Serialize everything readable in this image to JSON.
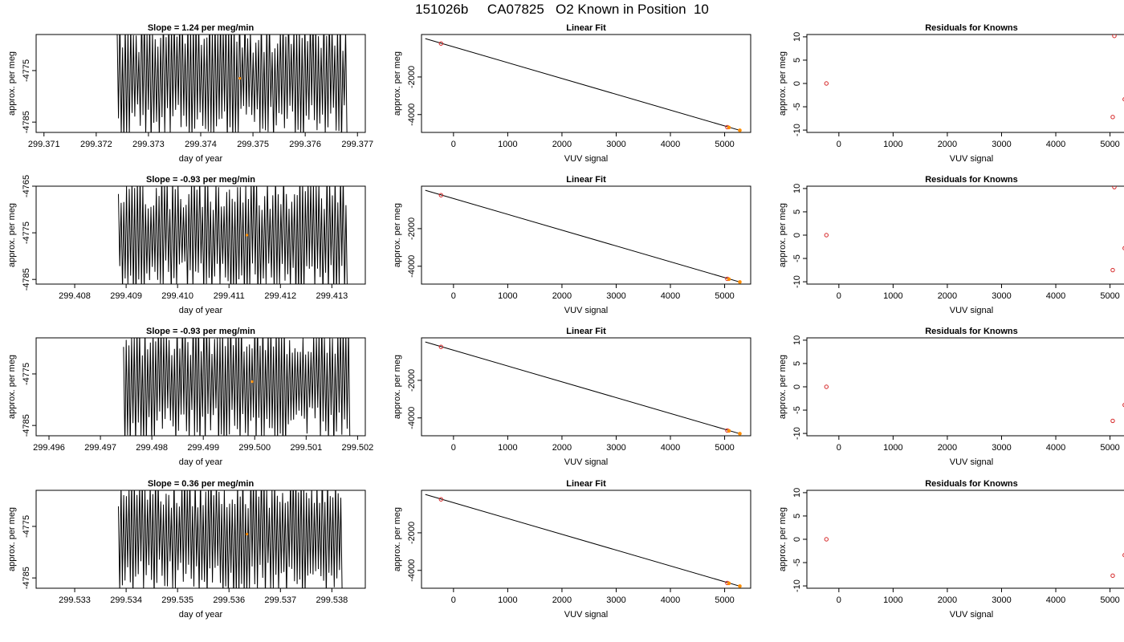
{
  "page": {
    "title": "151026b     CA07825   O2 Known in Position  10"
  },
  "colors": {
    "trace": "#000000",
    "marker_orange": "#ff8c00",
    "marker_red": "#d62728",
    "axis": "#000000"
  },
  "chart_data": [
    {
      "type": "line",
      "row": 0,
      "col": 0,
      "title": "Slope =  1.24  per meg/min",
      "xlabel": "day of year",
      "ylabel": "approx. per meg",
      "xlim": [
        299.37085,
        299.37715
      ],
      "ylim": [
        -4787,
        -4768
      ],
      "xticks": [
        299.371,
        299.372,
        299.373,
        299.374,
        299.375,
        299.376,
        299.377
      ],
      "xtick_labels": [
        "299.371",
        "299.372",
        "299.373",
        "299.374",
        "299.375",
        "299.376",
        "299.377"
      ],
      "yticks": [
        -4775,
        -4785
      ],
      "ytick_labels": [
        "-4775",
        "-4785"
      ],
      "trace": {
        "x_start": 299.3724,
        "x_end": 299.3768,
        "samples": 170,
        "center": -4776.5,
        "amplitude": 11,
        "seed": 1
      },
      "marker": {
        "x": 299.37475,
        "y": -4776.5
      }
    },
    {
      "type": "scatter",
      "row": 0,
      "col": 1,
      "title": "Linear Fit",
      "xlabel": "VUV signal",
      "ylabel": "approx. per meg",
      "xlim": [
        -590,
        5480
      ],
      "ylim": [
        -4950,
        260
      ],
      "xticks": [
        0,
        1000,
        2000,
        3000,
        4000,
        5000
      ],
      "xtick_labels": [
        "0",
        "1000",
        "2000",
        "3000",
        "4000",
        "5000"
      ],
      "yticks": [
        -2000,
        -4000
      ],
      "ytick_labels": [
        "-2000",
        "-4000"
      ],
      "fit_line": {
        "x": [
          -520,
          5280
        ],
        "y": [
          40,
          -4840
        ]
      },
      "points": [
        {
          "x": -230,
          "y": -220,
          "style": "red"
        },
        {
          "x": 5050,
          "y": -4670,
          "style": "red"
        },
        {
          "x": 5080,
          "y": -4690,
          "style": "orange"
        },
        {
          "x": 5280,
          "y": -4840,
          "style": "orange"
        }
      ]
    },
    {
      "type": "scatter",
      "row": 0,
      "col": 2,
      "title": "Residuals for Knowns",
      "xlabel": "VUV signal",
      "ylabel": "approx. per meg",
      "xlim": [
        -590,
        5480
      ],
      "ylim": [
        -10.5,
        10.5
      ],
      "xticks": [
        0,
        1000,
        2000,
        3000,
        4000,
        5000
      ],
      "xtick_labels": [
        "0",
        "1000",
        "2000",
        "3000",
        "4000",
        "5000"
      ],
      "yticks": [
        10,
        5,
        0,
        -5,
        -10
      ],
      "ytick_labels": [
        "10",
        "5",
        "0",
        "-5",
        "-10"
      ],
      "points": [
        {
          "x": -230,
          "y": 0
        },
        {
          "x": 5080,
          "y": 10.2
        },
        {
          "x": 5050,
          "y": -7.2
        },
        {
          "x": 5270,
          "y": -3.4
        }
      ]
    },
    {
      "type": "line",
      "row": 1,
      "col": 0,
      "title": "Slope =  -0.93  per meg/min",
      "xlabel": "day of year",
      "ylabel": "approx. per meg",
      "xlim": [
        299.40725,
        299.41365
      ],
      "ylim": [
        -4786,
        -4765
      ],
      "xticks": [
        299.408,
        299.409,
        299.41,
        299.411,
        299.412,
        299.413
      ],
      "xtick_labels": [
        "299.408",
        "299.409",
        "299.410",
        "299.411",
        "299.412",
        "299.413"
      ],
      "yticks": [
        -4765,
        -4775,
        -4785
      ],
      "ytick_labels": [
        "-4765",
        "-4775",
        "-4785"
      ],
      "trace": {
        "x_start": 299.40885,
        "x_end": 299.4133,
        "samples": 170,
        "center": -4775.5,
        "amplitude": 12,
        "seed": 2
      },
      "marker": {
        "x": 299.41135,
        "y": -4775.5
      }
    },
    {
      "type": "scatter",
      "row": 1,
      "col": 1,
      "title": "Linear Fit",
      "xlabel": "VUV signal",
      "ylabel": "approx. per meg",
      "xlim": [
        -590,
        5480
      ],
      "ylim": [
        -4950,
        260
      ],
      "xticks": [
        0,
        1000,
        2000,
        3000,
        4000,
        5000
      ],
      "xtick_labels": [
        "0",
        "1000",
        "2000",
        "3000",
        "4000",
        "5000"
      ],
      "yticks": [
        -2000,
        -4000
      ],
      "ytick_labels": [
        "-2000",
        "-4000"
      ],
      "fit_line": {
        "x": [
          -520,
          5280
        ],
        "y": [
          40,
          -4840
        ]
      },
      "points": [
        {
          "x": -230,
          "y": -220,
          "style": "red"
        },
        {
          "x": 5050,
          "y": -4670,
          "style": "red"
        },
        {
          "x": 5080,
          "y": -4690,
          "style": "orange"
        },
        {
          "x": 5280,
          "y": -4840,
          "style": "orange"
        }
      ]
    },
    {
      "type": "scatter",
      "row": 1,
      "col": 2,
      "title": "Residuals for Knowns",
      "xlabel": "VUV signal",
      "ylabel": "approx. per meg",
      "xlim": [
        -590,
        5480
      ],
      "ylim": [
        -10.5,
        10.5
      ],
      "xticks": [
        0,
        1000,
        2000,
        3000,
        4000,
        5000
      ],
      "xtick_labels": [
        "0",
        "1000",
        "2000",
        "3000",
        "4000",
        "5000"
      ],
      "yticks": [
        10,
        5,
        0,
        -5,
        -10
      ],
      "ytick_labels": [
        "10",
        "5",
        "0",
        "-5",
        "-10"
      ],
      "points": [
        {
          "x": -230,
          "y": 0
        },
        {
          "x": 5080,
          "y": 10.3
        },
        {
          "x": 5050,
          "y": -7.5
        },
        {
          "x": 5270,
          "y": -2.8
        }
      ]
    },
    {
      "type": "line",
      "row": 2,
      "col": 0,
      "title": "Slope =  -0.93  per meg/min",
      "xlabel": "day of year",
      "ylabel": "approx. per meg",
      "xlim": [
        299.49575,
        299.50215
      ],
      "ylim": [
        -4787,
        -4768
      ],
      "xticks": [
        299.496,
        299.497,
        299.498,
        299.499,
        299.5,
        299.501,
        299.502
      ],
      "xtick_labels": [
        "299.496",
        "299.497",
        "299.498",
        "299.499",
        "299.500",
        "299.501",
        "299.502"
      ],
      "yticks": [
        -4775,
        -4785
      ],
      "ytick_labels": [
        "-4775",
        "-4785"
      ],
      "trace": {
        "x_start": 299.49745,
        "x_end": 299.50185,
        "samples": 170,
        "center": -4776.5,
        "amplitude": 11,
        "seed": 3
      },
      "marker": {
        "x": 299.49995,
        "y": -4776.5
      }
    },
    {
      "type": "scatter",
      "row": 2,
      "col": 1,
      "title": "Linear Fit",
      "xlabel": "VUV signal",
      "ylabel": "approx. per meg",
      "xlim": [
        -590,
        5480
      ],
      "ylim": [
        -4950,
        260
      ],
      "xticks": [
        0,
        1000,
        2000,
        3000,
        4000,
        5000
      ],
      "xtick_labels": [
        "0",
        "1000",
        "2000",
        "3000",
        "4000",
        "5000"
      ],
      "yticks": [
        -2000,
        -4000
      ],
      "ytick_labels": [
        "-2000",
        "-4000"
      ],
      "fit_line": {
        "x": [
          -520,
          5280
        ],
        "y": [
          40,
          -4840
        ]
      },
      "points": [
        {
          "x": -230,
          "y": -220,
          "style": "red"
        },
        {
          "x": 5050,
          "y": -4670,
          "style": "red"
        },
        {
          "x": 5080,
          "y": -4690,
          "style": "orange"
        },
        {
          "x": 5280,
          "y": -4840,
          "style": "orange"
        }
      ]
    },
    {
      "type": "scatter",
      "row": 2,
      "col": 2,
      "title": "Residuals for Knowns",
      "xlabel": "VUV signal",
      "ylabel": "approx. per meg",
      "xlim": [
        -590,
        5480
      ],
      "ylim": [
        -10.5,
        10.5
      ],
      "xticks": [
        0,
        1000,
        2000,
        3000,
        4000,
        5000
      ],
      "xtick_labels": [
        "0",
        "1000",
        "2000",
        "3000",
        "4000",
        "5000"
      ],
      "yticks": [
        10,
        5,
        0,
        -5,
        -10
      ],
      "ytick_labels": [
        "10",
        "5",
        "0",
        "-5",
        "-10"
      ],
      "points": [
        {
          "x": -230,
          "y": 0
        },
        {
          "x": 5050,
          "y": -7.3
        },
        {
          "x": 5270,
          "y": -3.9
        }
      ]
    },
    {
      "type": "line",
      "row": 3,
      "col": 0,
      "title": "Slope =  0.36  per meg/min",
      "xlabel": "day of year",
      "ylabel": "approx. per meg",
      "xlim": [
        299.53225,
        299.53865
      ],
      "ylim": [
        -4787,
        -4768
      ],
      "xticks": [
        299.533,
        299.534,
        299.535,
        299.536,
        299.537,
        299.538
      ],
      "xtick_labels": [
        "299.533",
        "299.534",
        "299.535",
        "299.536",
        "299.537",
        "299.538"
      ],
      "yticks": [
        -4775,
        -4785
      ],
      "ytick_labels": [
        "-4775",
        "-4785"
      ],
      "trace": {
        "x_start": 299.53385,
        "x_end": 299.5382,
        "samples": 170,
        "center": -4776.5,
        "amplitude": 11,
        "seed": 4
      },
      "marker": {
        "x": 299.53635,
        "y": -4776.5
      }
    },
    {
      "type": "scatter",
      "row": 3,
      "col": 1,
      "title": "Linear Fit",
      "xlabel": "VUV signal",
      "ylabel": "approx. per meg",
      "xlim": [
        -590,
        5480
      ],
      "ylim": [
        -4950,
        260
      ],
      "xticks": [
        0,
        1000,
        2000,
        3000,
        4000,
        5000
      ],
      "xtick_labels": [
        "0",
        "1000",
        "2000",
        "3000",
        "4000",
        "5000"
      ],
      "yticks": [
        -2000,
        -4000
      ],
      "ytick_labels": [
        "-2000",
        "-4000"
      ],
      "fit_line": {
        "x": [
          -520,
          5280
        ],
        "y": [
          40,
          -4840
        ]
      },
      "points": [
        {
          "x": -230,
          "y": -220,
          "style": "red"
        },
        {
          "x": 5050,
          "y": -4670,
          "style": "red"
        },
        {
          "x": 5080,
          "y": -4690,
          "style": "orange"
        },
        {
          "x": 5280,
          "y": -4840,
          "style": "orange"
        }
      ]
    },
    {
      "type": "scatter",
      "row": 3,
      "col": 2,
      "title": "Residuals for Knowns",
      "xlabel": "VUV signal",
      "ylabel": "approx. per meg",
      "xlim": [
        -590,
        5480
      ],
      "ylim": [
        -10.5,
        10.5
      ],
      "xticks": [
        0,
        1000,
        2000,
        3000,
        4000,
        5000
      ],
      "xtick_labels": [
        "0",
        "1000",
        "2000",
        "3000",
        "4000",
        "5000"
      ],
      "yticks": [
        10,
        5,
        0,
        -5,
        -10
      ],
      "ytick_labels": [
        "10",
        "5",
        "0",
        "-5",
        "-10"
      ],
      "points": [
        {
          "x": -230,
          "y": 0
        },
        {
          "x": 5050,
          "y": -7.8
        },
        {
          "x": 5270,
          "y": -3.4
        }
      ]
    }
  ]
}
